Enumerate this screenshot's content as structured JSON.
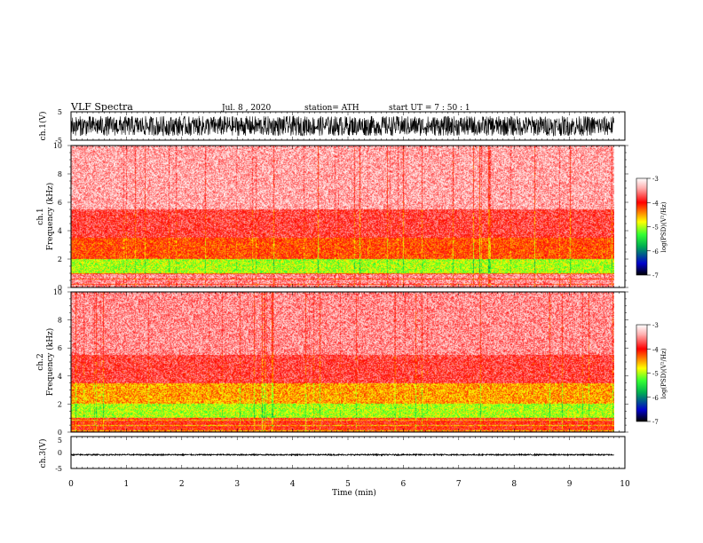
{
  "header": {
    "title": "VLF  Spectra",
    "date": "Jul.  8  ,  2020",
    "station": "station= ATH",
    "start": "start  UT  =   7  : 50 : 1"
  },
  "colors": {
    "background": "#ffffff",
    "waveform": "#000000",
    "colormap": [
      "#000000",
      "#0000cc",
      "#00b050",
      "#33ff33",
      "#ffff00",
      "#ff8000",
      "#ff0000",
      "#ffb0b0",
      "#ffffff"
    ]
  },
  "chart_data": [
    {
      "type": "line",
      "panel": "ch1-waveform",
      "ylabel": "ch.1(V)",
      "ylim": [
        -5,
        5
      ],
      "yticks": [
        "5",
        "-5"
      ],
      "x_range_min": [
        0,
        9.8
      ],
      "amplitude_range_V": [
        -3.5,
        3.5
      ]
    },
    {
      "type": "heatmap",
      "panel": "ch1-spectrogram",
      "ylabel": [
        "ch.1",
        "Frequency  (kHz)"
      ],
      "ylim": [
        0,
        10
      ],
      "yticks": [
        "0",
        "2",
        "4",
        "6",
        "8",
        "10"
      ],
      "x_range_min": [
        0,
        9.8
      ],
      "colorbar": {
        "label": "log(PSD)(V²/Hz)",
        "range": [
          -7,
          -3
        ],
        "ticks": [
          "-3",
          "-4",
          "-5",
          "-6",
          "-7"
        ]
      },
      "bands": [
        {
          "f_kHz": [
            0.0,
            1.0
          ],
          "log_psd": -3.5
        },
        {
          "f_kHz": [
            1.0,
            2.0
          ],
          "log_psd": -5.0
        },
        {
          "f_kHz": [
            2.0,
            3.5
          ],
          "log_psd": -4.2
        },
        {
          "f_kHz": [
            3.5,
            5.5
          ],
          "log_psd": -3.8
        },
        {
          "f_kHz": [
            5.5,
            10.0
          ],
          "log_psd": -3.4
        }
      ]
    },
    {
      "type": "heatmap",
      "panel": "ch2-spectrogram",
      "ylabel": [
        "ch.2",
        "Frequency  (kHz)"
      ],
      "ylim": [
        0,
        10
      ],
      "yticks": [
        "0",
        "2",
        "4",
        "6",
        "8",
        "10"
      ],
      "x_range_min": [
        0,
        9.8
      ],
      "colorbar": {
        "label": "log(PSD)(V²/Hz)",
        "range": [
          -7,
          -3
        ],
        "ticks": [
          "-3",
          "-4",
          "-5",
          "-6",
          "-7"
        ]
      },
      "bands": [
        {
          "f_kHz": [
            0.0,
            1.0
          ],
          "log_psd": -4.0
        },
        {
          "f_kHz": [
            1.0,
            2.0
          ],
          "log_psd": -5.0
        },
        {
          "f_kHz": [
            2.0,
            3.5
          ],
          "log_psd": -4.5
        },
        {
          "f_kHz": [
            3.5,
            5.5
          ],
          "log_psd": -3.8
        },
        {
          "f_kHz": [
            5.5,
            10.0
          ],
          "log_psd": -3.5
        }
      ]
    },
    {
      "type": "line",
      "panel": "ch3-waveform",
      "ylabel": "ch.3(V)",
      "ylim": [
        -5,
        5
      ],
      "yticks": [
        "5",
        "0",
        "-5"
      ],
      "x_range_min": [
        0,
        9.8
      ],
      "amplitude_range_V": [
        -0.9,
        -0.5
      ]
    }
  ],
  "xaxis": {
    "label": "Time  (min)",
    "ticks": [
      "0",
      "1",
      "2",
      "3",
      "4",
      "5",
      "6",
      "7",
      "8",
      "9",
      "10"
    ],
    "range": [
      0,
      10
    ]
  }
}
